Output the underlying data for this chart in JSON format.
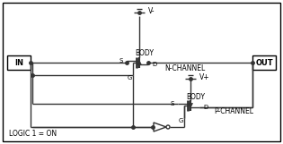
{
  "bg_color": "#ffffff",
  "line_color": "#333333",
  "text_color": "#000000",
  "fig_width": 3.15,
  "fig_height": 1.61,
  "dpi": 100,
  "v_minus_label": "V-",
  "v_plus_label": "V+",
  "body_n_label": "BODY",
  "body_p_label": "BODY",
  "n_channel_label": "N-CHANNEL",
  "p_channel_label": "P-CHANNEL",
  "logic_label": "LOGIC 1 = ON",
  "s_n": "S",
  "d_n": "D",
  "g_n": "G",
  "s_p": "S",
  "d_p": "D",
  "g_p": "G",
  "in_label": "IN",
  "out_label": "OUT"
}
